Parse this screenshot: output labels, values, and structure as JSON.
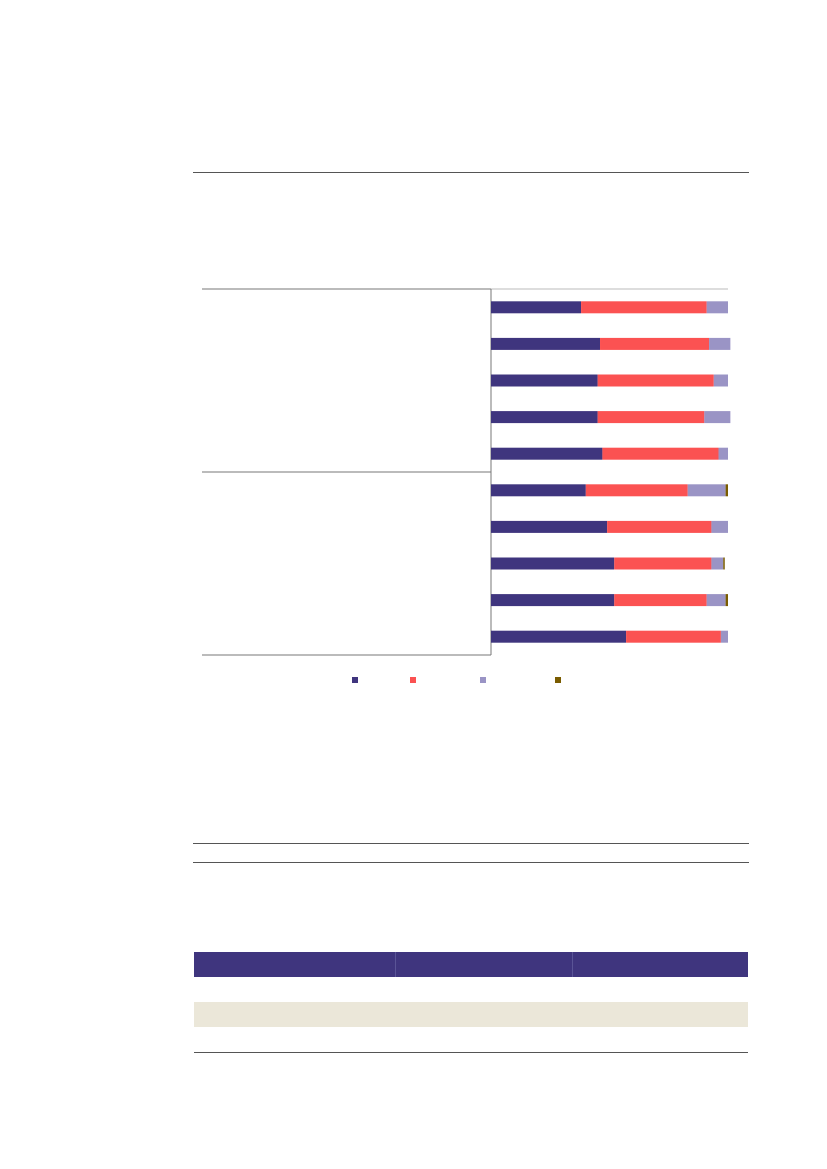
{
  "colors": {
    "series": [
      "#3f357e",
      "#fb5252",
      "#9a94c5",
      "#7a5c00"
    ],
    "table_header": "#3f357e",
    "table_alt_row": "#ebe7d9",
    "rule": "#555555"
  },
  "chart_data": {
    "type": "bar",
    "orientation": "horizontal",
    "stacked": true,
    "categories": [
      "",
      "",
      "",
      "",
      "",
      "",
      "",
      "",
      "",
      ""
    ],
    "series": [
      {
        "values": [
          38,
          46,
          45,
          45,
          47,
          40,
          49,
          52,
          52,
          57
        ]
      },
      {
        "values": [
          53,
          46,
          49,
          45,
          49,
          43,
          44,
          41,
          39,
          40
        ]
      },
      {
        "values": [
          9,
          9,
          6,
          11,
          4,
          16,
          7,
          5,
          8,
          3
        ]
      },
      {
        "values": [
          0,
          0,
          0,
          0,
          0,
          1,
          0,
          0.5,
          1,
          0
        ]
      }
    ],
    "xlim": [
      0,
      100
    ],
    "grid": false,
    "legend": "bottom-center",
    "groups": [
      {
        "rows": 5
      },
      {
        "rows": 5
      }
    ]
  },
  "table": {
    "columns": [
      "",
      "",
      ""
    ],
    "rows": [
      [
        "",
        "",
        ""
      ],
      [
        "",
        "",
        ""
      ],
      [
        "",
        "",
        ""
      ]
    ]
  }
}
